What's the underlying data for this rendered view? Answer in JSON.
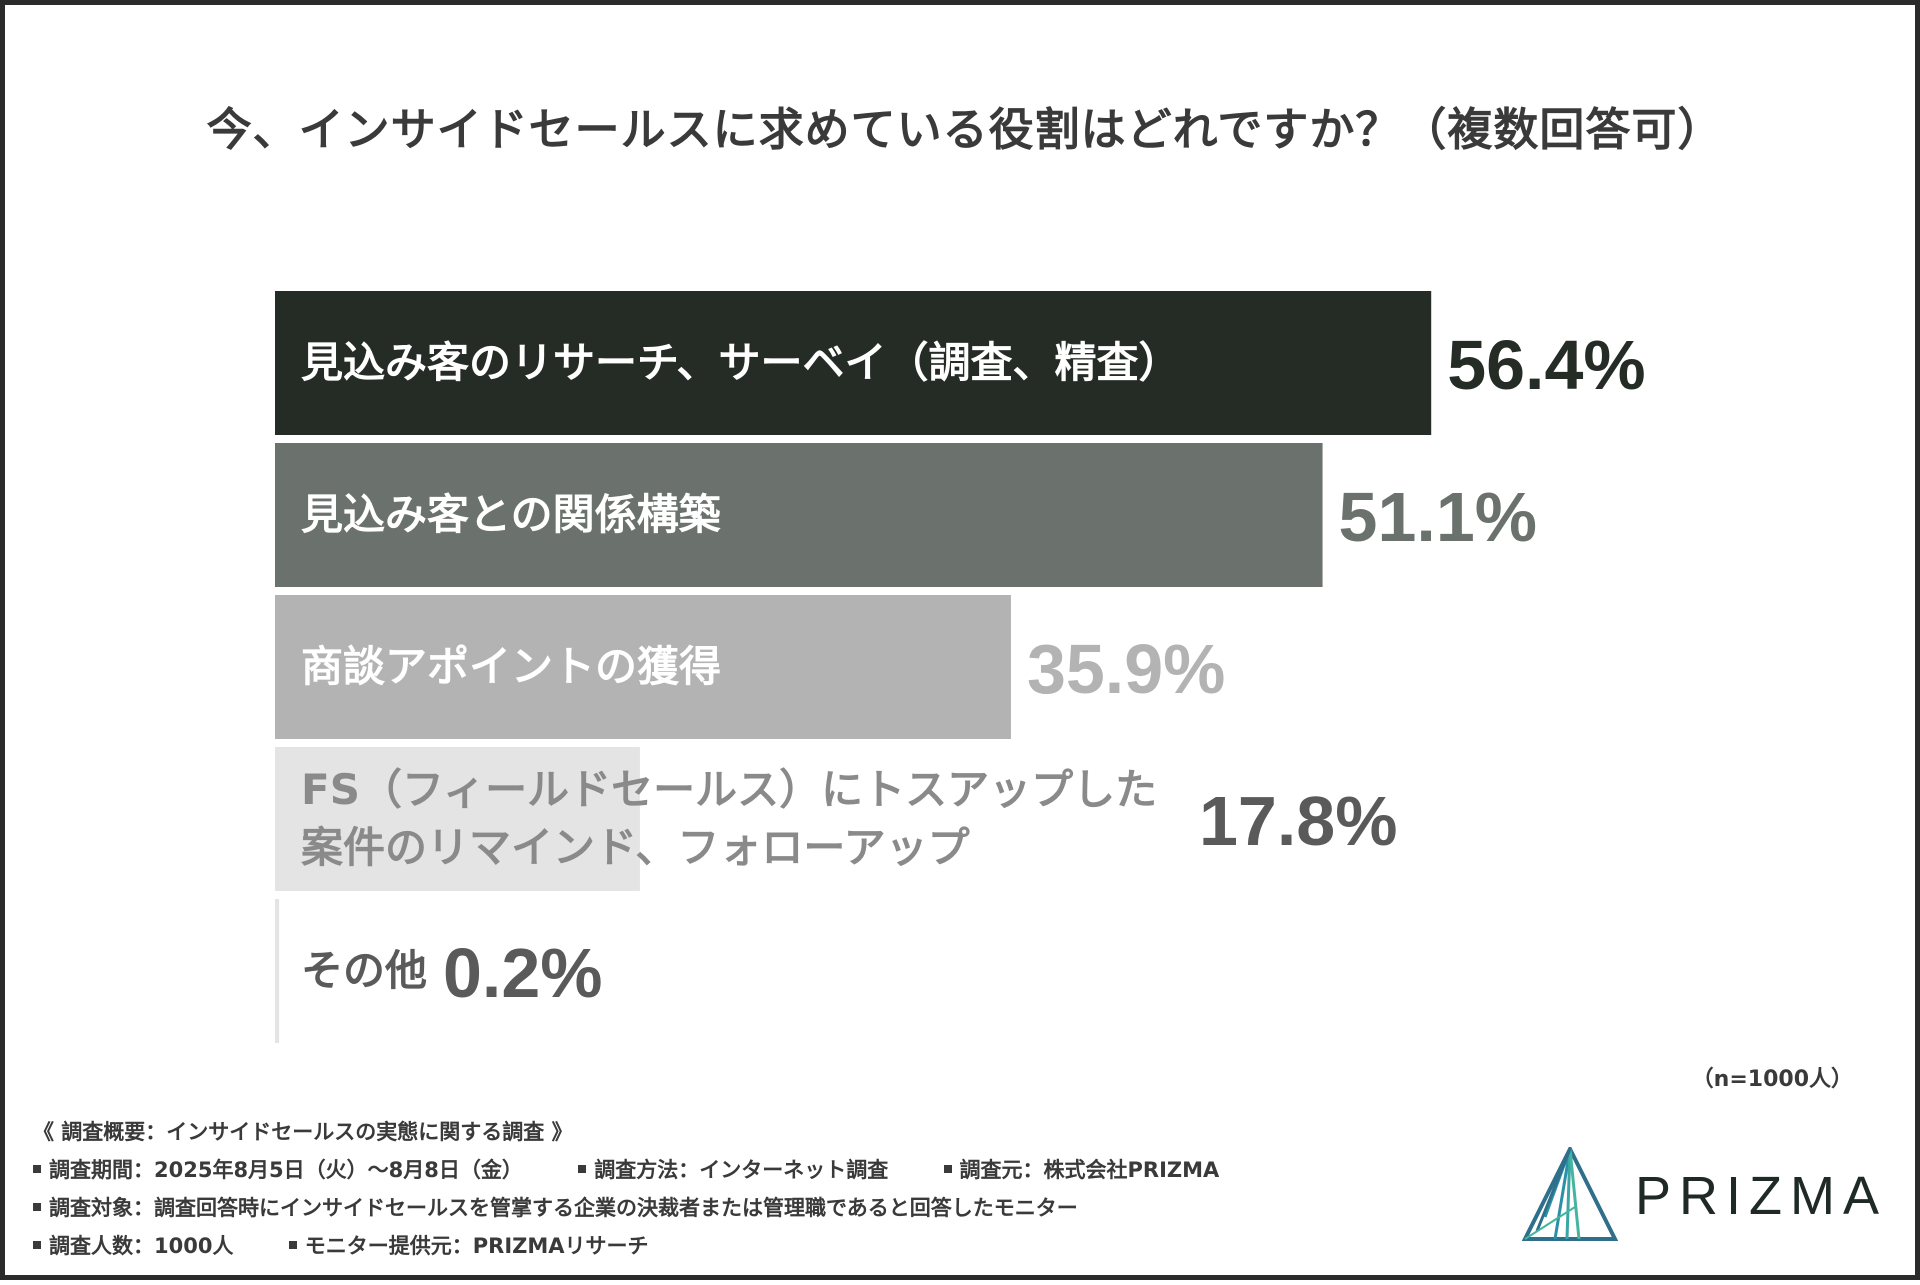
{
  "title": "今、インサイドセールスに求めている役割はどれですか？（複数回答可）",
  "chart_data": {
    "type": "bar",
    "orientation": "horizontal",
    "title": "今、インサイドセールスに求めている役割はどれですか？（複数回答可）",
    "categories": [
      [
        "見込み客のリサーチ、サーベイ（調査、精査）"
      ],
      [
        "見込み客との関係構築"
      ],
      [
        "商談アポイントの獲得"
      ],
      [
        "FS（フィールドセールス）にトスアップした",
        "案件のリマインド、フォローアップ"
      ],
      [
        "その他"
      ]
    ],
    "values": [
      56.4,
      51.1,
      35.9,
      17.8,
      0.2
    ],
    "value_labels": [
      "56.4%",
      "51.1%",
      "35.9%",
      "17.8%",
      "0.2%"
    ],
    "unit": "%",
    "bar_colors": [
      "#252c26",
      "#6b716d",
      "#b3b3b3",
      "#e4e4e4",
      "#e4e4e4"
    ],
    "value_label_colors": [
      "#252c26",
      "#6b716d",
      "#b3b3b3",
      "#5a5a5a",
      "#5a5a5a"
    ],
    "bar_text_colors": [
      "#ffffff",
      "#ffffff",
      "#ffffff",
      "#8a8a8a",
      "#5a5a5a"
    ],
    "xlim": [
      0,
      100
    ],
    "grid": false,
    "legend": "none"
  },
  "sample_size": "（n=1000人）",
  "footer": {
    "heading": "《 調査概要：インサイドセールスの実態に関する調査 》",
    "period": "調査期間：2025年8月5日（火）～8月8日（金）",
    "method": "調査方法：インターネット調査",
    "source": "調査元：株式会社PRIZMA",
    "target": "調査対象：調査回答時にインサイドセールスを管掌する企業の決裁者または管理職であると回答したモニター",
    "count": "調査人数：1000人",
    "provider": "モニター提供元：PRIZMAリサーチ"
  },
  "logo": {
    "text": "PRIZMA",
    "colors": [
      "#2a8fa8",
      "#46b5a0",
      "#2f6f8a"
    ]
  }
}
